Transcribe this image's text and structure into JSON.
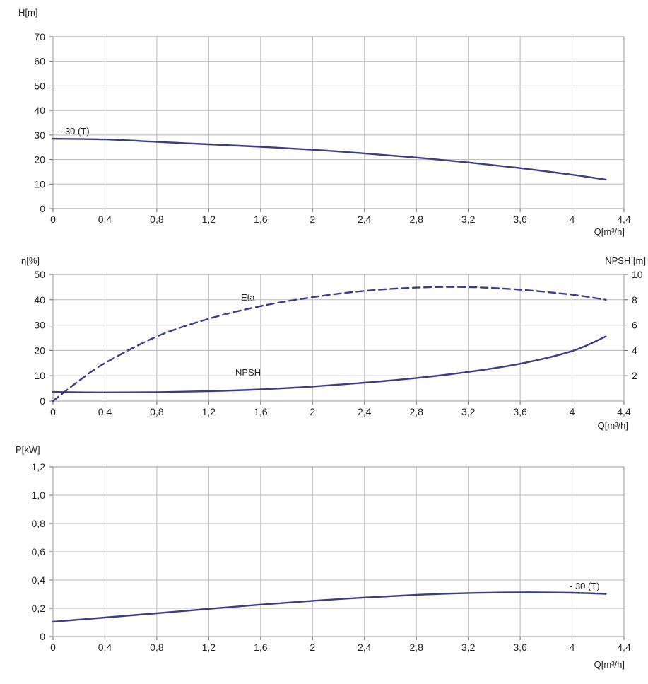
{
  "chart_data": [
    {
      "type": "line",
      "ylabel": "H[m]",
      "xlabel": "Q[m³/h]",
      "xlim": [
        0,
        4.4
      ],
      "ylim": [
        0,
        70
      ],
      "x_ticks": [
        "0",
        "0,4",
        "0,8",
        "1,2",
        "1,6",
        "2",
        "2,4",
        "2,8",
        "3,2",
        "3,6",
        "4",
        "4,4"
      ],
      "y_ticks": [
        "0",
        "10",
        "20",
        "30",
        "40",
        "50",
        "60",
        "70"
      ],
      "annotations": [
        "- 30 (T)"
      ],
      "grid": true,
      "series": [
        {
          "name": "- 30 (T)",
          "color": "#3b3d86",
          "x": [
            0,
            0.4,
            0.8,
            1.2,
            1.6,
            2.0,
            2.4,
            2.8,
            3.2,
            3.6,
            4.0,
            4.26
          ],
          "y": [
            28.5,
            28.2,
            27.2,
            26.2,
            25.2,
            24.0,
            22.5,
            20.8,
            18.8,
            16.5,
            13.8,
            11.8
          ]
        }
      ]
    },
    {
      "type": "line",
      "ylabel": "η[%]",
      "ylabel_right": "NPSH [m]",
      "xlabel": "Q[m³/h]",
      "xlim": [
        0,
        4.4
      ],
      "ylim": [
        0,
        50
      ],
      "ylim_right": [
        0,
        10
      ],
      "x_ticks": [
        "0",
        "0,4",
        "0,8",
        "1,2",
        "1,6",
        "2",
        "2,4",
        "2,8",
        "3,2",
        "3,6",
        "4",
        "4,4"
      ],
      "y_ticks": [
        "0",
        "10",
        "20",
        "30",
        "40",
        "50"
      ],
      "y_ticks_right": [
        "2",
        "4",
        "6",
        "8",
        "10"
      ],
      "grid": true,
      "series": [
        {
          "name": "Eta",
          "axis": "left",
          "style": "dashed",
          "color": "#3b3d86",
          "x": [
            0,
            0.2,
            0.4,
            0.8,
            1.2,
            1.6,
            2.0,
            2.4,
            2.8,
            3.2,
            3.6,
            4.0,
            4.26
          ],
          "y": [
            0,
            8,
            15,
            25.5,
            32.5,
            37.5,
            41,
            43.5,
            44.8,
            45,
            44,
            42,
            40
          ]
        },
        {
          "name": "NPSH",
          "axis": "right",
          "style": "solid",
          "color": "#3b3d86",
          "x": [
            0,
            0.4,
            0.8,
            1.2,
            1.6,
            2.0,
            2.4,
            2.8,
            3.2,
            3.6,
            4.0,
            4.26
          ],
          "y": [
            0.72,
            0.68,
            0.7,
            0.78,
            0.92,
            1.15,
            1.45,
            1.82,
            2.3,
            2.95,
            3.95,
            5.1
          ]
        }
      ]
    },
    {
      "type": "line",
      "ylabel": "P[kW]",
      "xlabel": "Q[m³/h]",
      "xlim": [
        0,
        4.4
      ],
      "ylim": [
        0,
        1.2
      ],
      "x_ticks": [
        "0",
        "0,4",
        "0,8",
        "1,2",
        "1,6",
        "2",
        "2,4",
        "2,8",
        "3,2",
        "3,6",
        "4",
        "4,4"
      ],
      "y_ticks": [
        "0",
        "0,2",
        "0,4",
        "0,6",
        "0,8",
        "1,0",
        "1,2"
      ],
      "annotations": [
        "- 30 (T)"
      ],
      "grid": true,
      "series": [
        {
          "name": "- 30 (T)",
          "color": "#3b3d86",
          "x": [
            0,
            0.4,
            0.8,
            1.2,
            1.6,
            2.0,
            2.4,
            2.8,
            3.2,
            3.6,
            4.0,
            4.26
          ],
          "y": [
            0.105,
            0.135,
            0.165,
            0.196,
            0.226,
            0.253,
            0.276,
            0.295,
            0.308,
            0.313,
            0.31,
            0.302
          ]
        }
      ]
    }
  ]
}
